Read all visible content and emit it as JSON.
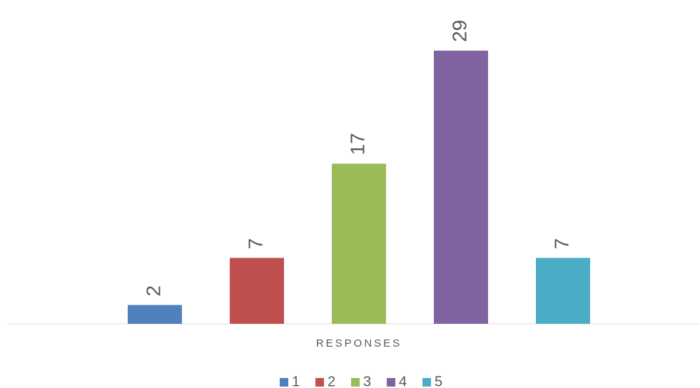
{
  "chart_data": {
    "type": "bar",
    "categories": [
      "RESPONSES"
    ],
    "series": [
      {
        "name": "1",
        "color": "#4f81bd",
        "values": [
          2
        ]
      },
      {
        "name": "2",
        "color": "#c0504d",
        "values": [
          7
        ]
      },
      {
        "name": "3",
        "color": "#9bbb59",
        "values": [
          17
        ]
      },
      {
        "name": "4",
        "color": "#8064a2",
        "values": [
          29
        ]
      },
      {
        "name": "5",
        "color": "#4bacc6",
        "values": [
          7
        ]
      }
    ],
    "legend": "bottom",
    "grid": false
  }
}
